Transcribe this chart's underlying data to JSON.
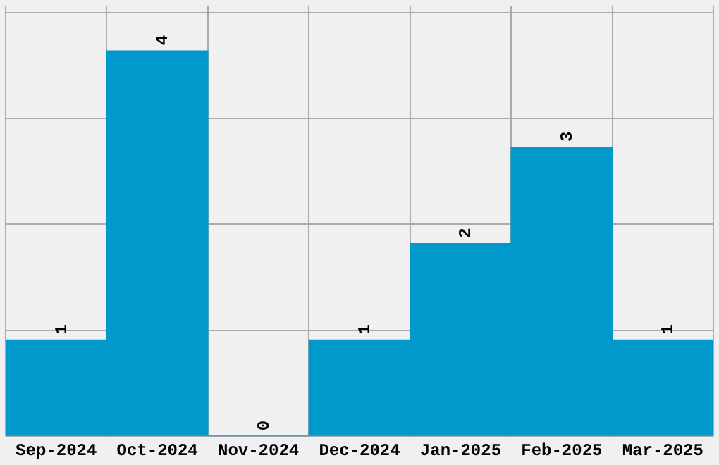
{
  "chart_data": {
    "type": "bar",
    "categories": [
      "Sep-2024",
      "Oct-2024",
      "Nov-2024",
      "Dec-2024",
      "Jan-2025",
      "Feb-2025",
      "Mar-2025"
    ],
    "values": [
      1,
      4,
      0,
      1,
      2,
      3,
      1
    ],
    "color": "#0099cc",
    "data_labels": true,
    "ylim": [
      0,
      4.47
    ],
    "yticks": [
      {
        "value": 0,
        "label": null
      },
      {
        "value": 1.1,
        "label": null
      },
      {
        "value": 2.2,
        "label": null
      },
      {
        "value": 3.3,
        "label": null
      },
      {
        "value": 4.4,
        "label": null
      }
    ],
    "tick_labels": "x",
    "grid": true,
    "legend": false
  }
}
